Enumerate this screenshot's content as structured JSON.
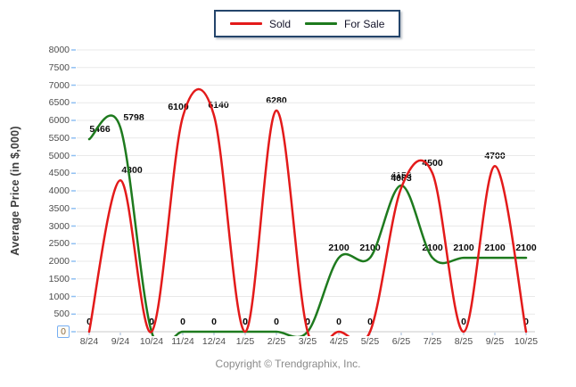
{
  "legend": {
    "items": [
      {
        "label": "Sold",
        "color": "#e31a1a"
      },
      {
        "label": "For Sale",
        "color": "#1e7a1e"
      }
    ]
  },
  "chart_data": {
    "type": "line",
    "curve": "spline",
    "title": "",
    "xlabel": "",
    "ylabel": "Average Price (in $,000)",
    "ylim": [
      0,
      8000
    ],
    "ytick_step": 500,
    "grid": "horizontal",
    "legend_position": "top-center",
    "categories": [
      "8/24",
      "9/24",
      "10/24",
      "11/24",
      "12/24",
      "1/25",
      "2/25",
      "3/25",
      "4/25",
      "5/25",
      "6/25",
      "7/25",
      "8/25",
      "9/25",
      "10/25"
    ],
    "series": [
      {
        "name": "Sold",
        "color": "#e31a1a",
        "values": [
          0,
          4300,
          0,
          6100,
          6140,
          0,
          6280,
          0,
          0,
          0,
          4083,
          4500,
          0,
          4700,
          0
        ]
      },
      {
        "name": "For Sale",
        "color": "#1e7a1e",
        "values": [
          5466,
          5798,
          0,
          0,
          0,
          0,
          0,
          0,
          2100,
          2100,
          4153,
          2100,
          2100,
          2100,
          2100
        ]
      }
    ],
    "point_labels_visible": true
  },
  "footer": {
    "copyright": "Copyright © Trendgraphix, Inc."
  }
}
